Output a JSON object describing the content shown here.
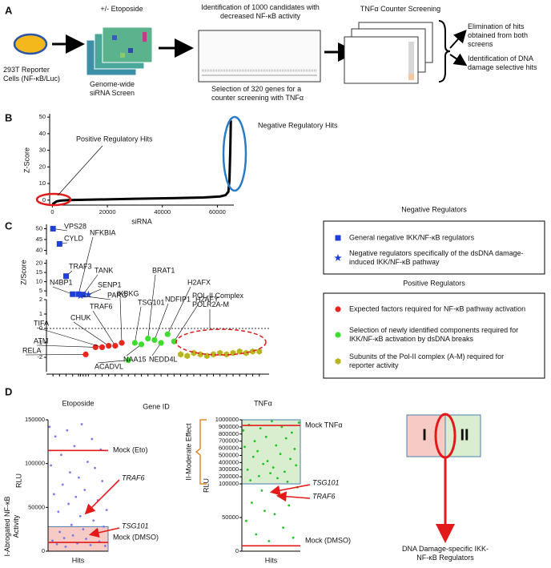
{
  "panel_labels": [
    "A",
    "B",
    "C",
    "D"
  ],
  "panel_a": {
    "etoposide": "+/- Etoposide",
    "identification": "Identification of 1000 candidates with decreased NF-κB activity",
    "counter": "TNFα Counter Screening",
    "cells": "293T Reporter Cells (NF-κB/Luc)",
    "screen": "Genome-wide siRNA Screen",
    "selection": "Selection of 320 genes for a counter screening with TNFα",
    "elimination": "Elimination of hits obtained from both screens",
    "dna_damage": "Identification of DNA damage selective hits"
  },
  "chart_data": [
    {
      "type": "line",
      "y_label": "Z-Score",
      "x_label": "siRNA",
      "x": [
        0,
        1500,
        3000,
        6000,
        15000,
        30000,
        45000,
        55000,
        61000,
        63000,
        64000,
        64400,
        64700,
        64900
      ],
      "series": [
        {
          "color": "#000000",
          "values": [
            -2.5,
            -0.8,
            -0.3,
            0,
            0.3,
            0.8,
            1.2,
            1.6,
            2.2,
            3,
            5,
            12,
            30,
            48
          ]
        }
      ],
      "xlim": [
        -1000,
        66000
      ],
      "xticks": [
        0,
        20000,
        40000,
        60000
      ],
      "ylim": [
        -3,
        52
      ],
      "yticks": [
        0,
        10,
        20,
        30,
        40,
        50
      ],
      "annotations": [
        "Positive Regulatory Hits",
        "Negative Regulatory Hits"
      ]
    },
    {
      "type": "scatter",
      "y_label": "Z/Score",
      "x_label": "Gene ID",
      "xlim": [
        0,
        34
      ],
      "y_segments": [
        {
          "ylim": [
            38,
            52
          ],
          "yticks": [
            40,
            45,
            50
          ]
        },
        {
          "ylim": [
            2,
            22
          ],
          "yticks": [
            5,
            10,
            15,
            20
          ]
        },
        {
          "ylim": [
            -3,
            2
          ],
          "yticks": [
            -2,
            -1,
            0,
            1,
            2
          ]
        }
      ],
      "zero_line": 0,
      "legend_groups": [
        "Negative Regulators",
        "Positive Regulators"
      ],
      "annotation": "POL-II Complex POLR2A-M",
      "series": [
        {
          "name": "General negative IKK/NF-κB regulators",
          "color": "#1f3fd6",
          "marker": "square",
          "labels": [
            "VPS28",
            "CYLD",
            "TRAF3",
            "N4BP1",
            "NFKBIA",
            "TANK"
          ],
          "x": [
            1,
            2,
            3,
            4,
            4.9,
            5.6
          ],
          "values": [
            50,
            43,
            13,
            3.2,
            3.2,
            3
          ]
        },
        {
          "name": "Negative regulators specifically of the dsDNA damage-induced IKK/NF-κB pathway",
          "color": "#1f3fd6",
          "marker": "star",
          "labels": [
            "SENP1",
            "PARG"
          ],
          "x": [
            6.4,
            5.2
          ],
          "values": [
            3,
            2.4
          ]
        },
        {
          "name": "Expected factors required for NF-κB pathway activation",
          "color": "#e8261e",
          "marker": "circle",
          "labels": [
            "RELA",
            "ATM",
            "TIFA",
            "CHUK",
            "TRAF6",
            "IKBKG"
          ],
          "x": [
            6,
            7.5,
            8.5,
            9.5,
            10.5,
            11.5
          ],
          "values": [
            -1.8,
            -1.3,
            -1.3,
            -1.2,
            -1.2,
            -1.0
          ]
        },
        {
          "name": "Selection of newly identified components required for IKK/NF-κB activation by dsDNA breaks",
          "color": "#3ddc2e",
          "marker": "circle",
          "labels": [
            "ACADVL",
            "TSG101",
            "NAA15",
            "BRAT1",
            "NDFIP1",
            "NEDD4L",
            "H2AFX",
            "H2AFY"
          ],
          "x": [
            12.5,
            13.5,
            14.5,
            15.5,
            16.5,
            17.5,
            18.5,
            19.5
          ],
          "values": [
            -2.2,
            -1.0,
            -1.1,
            -0.7,
            -0.8,
            -1.0,
            -0.4,
            -0.9
          ]
        },
        {
          "name": "Subunits of the Pol-II complex (A-M) required for reporter activity",
          "color": "#b8b520",
          "marker": "hexagon",
          "x": [
            20.5,
            21.5,
            22.5,
            23.5,
            24.5,
            25.5,
            26.5,
            27.5,
            28.5,
            29.5,
            30.5,
            31.5,
            32.5
          ],
          "values": [
            -1.8,
            -1.9,
            -1.7,
            -1.8,
            -1.9,
            -1.8,
            -1.7,
            -1.8,
            -1.7,
            -1.6,
            -1.7,
            -1.6,
            -1.6
          ]
        }
      ]
    },
    {
      "type": "scatter",
      "title": "Etoposide",
      "y_label": "RLU",
      "x_label": "Hits",
      "xlim": [
        0,
        41
      ],
      "ylim": [
        0,
        150000
      ],
      "yticks": [
        0,
        50000,
        100000,
        150000
      ],
      "color": "#7b7be6",
      "x": [
        1,
        2,
        3,
        4,
        5,
        6,
        7,
        8,
        9,
        10,
        11,
        12,
        13,
        14,
        15,
        16,
        17,
        18,
        19,
        20,
        21,
        22,
        23,
        24,
        25,
        26,
        27,
        28,
        29,
        30,
        31,
        32,
        33,
        34,
        35,
        36,
        37,
        38,
        39,
        40
      ],
      "values": [
        142000,
        98000,
        12000,
        65000,
        131000,
        8000,
        45000,
        22000,
        110000,
        76000,
        15000,
        5000,
        138000,
        54000,
        90000,
        30000,
        18000,
        120000,
        62000,
        9000,
        84000,
        40000,
        145000,
        25000,
        70000,
        14000,
        102000,
        50000,
        7000,
        128000,
        35000,
        95000,
        20000,
        58000,
        11000,
        116000,
        80000,
        28000,
        6000,
        47000
      ],
      "reference_lines": [
        {
          "name": "Mock (Eto)",
          "value": 115000
        },
        {
          "name": "Mock (DMSO)",
          "value": 10000
        }
      ],
      "region": {
        "label": "I-Abrogated NF-κB Activity",
        "ylim": [
          0,
          28000
        ]
      },
      "annotations": [
        "TRAF6",
        "TSG101"
      ]
    },
    {
      "type": "scatter",
      "title": "TNFα",
      "y_label": "RLU",
      "x_label": "Hits",
      "xlim": [
        0,
        41
      ],
      "color": "#22c322",
      "y_segments": [
        {
          "ylim": [
            100000,
            1000000
          ],
          "yticks": [
            200000,
            300000,
            400000,
            500000,
            600000,
            700000,
            800000,
            900000,
            1000000
          ]
        },
        {
          "ylim": [
            0,
            100000
          ],
          "yticks": [
            0,
            50000,
            100000
          ]
        }
      ],
      "x": [
        1,
        2,
        3,
        4,
        5,
        6,
        7,
        8,
        9,
        10,
        11,
        12,
        13,
        14,
        15,
        16,
        17,
        18,
        19,
        20,
        21,
        22,
        23,
        24,
        25,
        26,
        27,
        28,
        29,
        30,
        31,
        32,
        33,
        34,
        35,
        36,
        37,
        38,
        39,
        40
      ],
      "values": [
        850000,
        620000,
        45000,
        300000,
        930000,
        150000,
        72000,
        480000,
        700000,
        25000,
        560000,
        210000,
        880000,
        90000,
        380000,
        60000,
        760000,
        420000,
        15000,
        250000,
        980000,
        330000,
        55000,
        640000,
        180000,
        82000,
        520000,
        900000,
        35000,
        270000,
        740000,
        130000,
        68000,
        450000,
        820000,
        20000,
        590000,
        360000,
        95000,
        960000
      ],
      "reference_lines": [
        {
          "name": "Mock TNFα",
          "value": 920000
        },
        {
          "name": "Mock (DMSO)",
          "value": 8000
        }
      ],
      "region": {
        "label": "II-Moderate Effect",
        "ylim": [
          100000,
          1000000
        ]
      },
      "annotations": [
        "TSG101",
        "TRAF6"
      ]
    }
  ],
  "diagram": {
    "zones": [
      "I",
      "II"
    ],
    "caption": "DNA Damage-specific IKK-NF-κB Regulators"
  }
}
